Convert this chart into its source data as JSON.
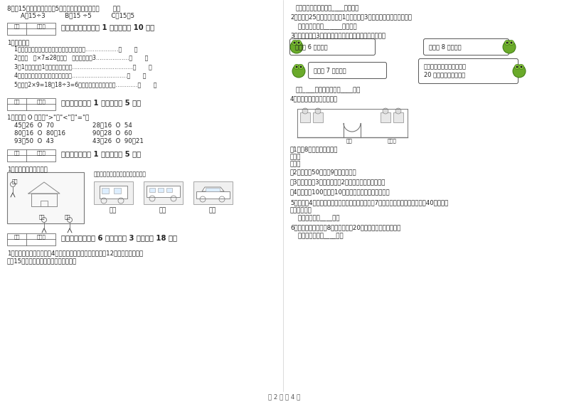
{
  "bg_color": "#ffffff",
  "footer": "第 2 页 共 4 页",
  "left": {
    "q8_line1": "8．有15个苹果，小明吃了5个，还有几个？列式为（       ）。",
    "q8_line2": "    A、15÷3          B、15 ÷5          C、15－5",
    "sec5_title": "五、判断对与错（共 1 大题，共计 10 分）",
    "sec5_sub": "1．判一判。",
    "sec5_items": [
      "1．一个数的最高位是万位，这个数是四位数。………………（       ）",
      "2．在（   ）×7≤28中，（   ）里最大应填3………………（       ）",
      "3．1千克铁条和1千克木条一样重。……………………………（       ）",
      "4．称物体的质量可以用天平和米尺。…………………………（       ）",
      "5．计算2×9=18和18÷3=6用的是同一句乘法口诀。…………（       ）"
    ],
    "sec6_title": "六、比一比（共 1 大题，共计 5 分）",
    "sec6_sub": "1．我会在 O 里填上\">\"，\"<\"，\"=\"。",
    "sec6_left_col": [
      "45＋26  O  70",
      "80－16  O  80＋16",
      "93－50  O  43"
    ],
    "sec6_right_col": [
      "28＋16  O  54",
      "90－28  O  60",
      "43＋26  O  90－21"
    ],
    "sec7_title": "七、连一连（共 1 大题，共计 5 分）",
    "sec7_sub": "1．观察物体，连一连。",
    "sec7_connect_label": "请你连一连，下面分别是谁看到的？",
    "sec7_bot_labels": [
      "小红",
      "小东",
      "小明"
    ],
    "sec8_title": "八、解决问题（共 6 小题，每题 3 分，共计 18 分）",
    "sec8_q1a": "1．小明家的鸡圈里原来有4只小鸡，妈妈上个星期买来捉了12只，这个星期又买",
    "sec8_q1b": "捉了15只，现在鸡圈里还剩下几只小鸡？"
  },
  "right": {
    "ans1": "答：现在鸡圈里还剩下____只小鸡。",
    "q2": "2、玲玲用25米布做衣服，做1套衣服要用3米，最多可以做几套衣服？",
    "ans2": "    答：最多可以做______套衣服。",
    "q3": "3、青蛙妈妈和3只小青蛙比，谁捉的害虫多？多多少只？",
    "frog1_tl": "我捉了 6 只害虫。",
    "frog2_tr": "我捉了 8 只害虫。",
    "frog3_bl": "我捉了 7 只害虫。",
    "frog4_br1": "孩子们，加油！我已经捉了",
    "frog4_br2": "20 只了，我们来比赛。",
    "ans3": "答：____捉的害虫多，多____只。",
    "q4": "4、星期日同学们去游乐园。",
    "q4_1": "（1）买8张门票用多少元？",
    "q4_method1": "乘法：",
    "q4_method2": "加法：",
    "q4_2": "（2）小厢拿50元，买9张门票够吗？",
    "q4_3": "（3）小红买了3张门票，还剩2元钱，小红带了多少钱？",
    "q4_4": "（4）小红拿100元，买10张门票，还可以剩下多少钱？",
    "q5a": "5、小明和4个同学去公园玩，公园的儿童票是每张7元，他们一共花了多少元？带40元去，买",
    "q5b": "票的钱够吗？",
    "ans5": "    答：一共花了____元。",
    "q6": "6、坐一次摩天轮需要8元，淘气带了20元钱，最多可以坐几次？",
    "ans6": "    答：最多可以坐____次。",
    "ticket_label": "门票",
    "ticket_label2": "售票处"
  }
}
